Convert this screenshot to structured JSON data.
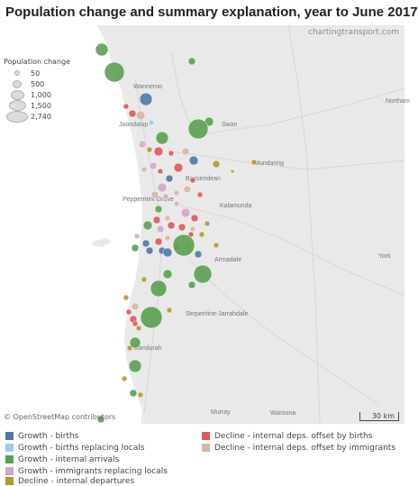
{
  "title": "Population change and summary explanation, year to June 2017",
  "watermark": "chartingtransport.com",
  "attribution": "© OpenStreetMap contributors",
  "scale_label": "30 km",
  "size_legend": {
    "title": "Population change",
    "entries": [
      "50",
      "500",
      "1,000",
      "1,500",
      "2,740"
    ]
  },
  "place_labels": [
    "Wanneroo",
    "Joondalup",
    "Swan",
    "Mundaring",
    "Bassendean",
    "Peppermint Grove",
    "Kalamunda",
    "Armadale",
    "Serpentine-Jarrahdale",
    "Mandurah",
    "Murray",
    "Northam",
    "Waroona",
    "York"
  ],
  "colors": {
    "growth_births": "#4e79a7",
    "growth_births_replacing": "#a0cbe8",
    "growth_internal_arrivals": "#59a14f",
    "growth_immigrants_replacing": "#d4a6c8",
    "decline_internal_departures": "#b6992d",
    "decline_offset_births": "#e15759",
    "decline_offset_immigrants": "#d7b5a6"
  },
  "legend": [
    {
      "label": "Growth - births",
      "color": "#4e79a7"
    },
    {
      "label": "Growth - births replacing locals",
      "color": "#a0cbe8"
    },
    {
      "label": "Growth - internal arrivals",
      "color": "#59a14f"
    },
    {
      "label": "Growth - immigrants replacing locals",
      "color": "#d4a6c8"
    },
    {
      "label": "Decline - internal departures",
      "color": "#b6992d"
    },
    {
      "label": "Decline - internal deps. offset by births",
      "color": "#e15759"
    },
    {
      "label": "Decline - internal deps. offset by immigrants",
      "color": "#d7b5a6"
    }
  ]
}
